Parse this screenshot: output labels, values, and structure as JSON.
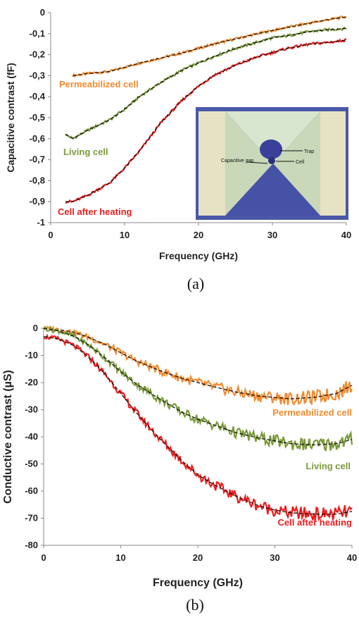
{
  "chart_data": [
    {
      "type": "line",
      "panel": "a",
      "caption": "(a)",
      "xlabel": "Frequency (GHz)",
      "ylabel": "Capacitive contrast (fF)",
      "xlim": [
        0,
        40
      ],
      "ylim": [
        -1,
        0
      ],
      "xticks": [
        "0",
        "10",
        "20",
        "30",
        "40"
      ],
      "yticks": [
        "0",
        "-0,1",
        "-0,2",
        "-0,3",
        "-0,4",
        "-0,5",
        "-0,6",
        "-0,7",
        "-0,8",
        "-0,9",
        "-1"
      ],
      "grid": false,
      "fit_style": "black dashed",
      "series": [
        {
          "name": "Permeabilized cell",
          "color": "#f28a2e",
          "x": [
            3,
            5,
            8,
            10,
            12,
            15,
            18,
            20,
            22,
            25,
            28,
            30,
            32,
            35,
            38,
            40
          ],
          "y": [
            -0.3,
            -0.29,
            -0.28,
            -0.26,
            -0.24,
            -0.215,
            -0.19,
            -0.17,
            -0.15,
            -0.125,
            -0.1,
            -0.085,
            -0.07,
            -0.05,
            -0.03,
            -0.02
          ]
        },
        {
          "name": "Living cell",
          "color": "#7a9a3a",
          "x": [
            2,
            3,
            5,
            8,
            10,
            12,
            15,
            18,
            20,
            22,
            25,
            28,
            30,
            32,
            35,
            38,
            40
          ],
          "y": [
            -0.58,
            -0.6,
            -0.56,
            -0.51,
            -0.46,
            -0.4,
            -0.33,
            -0.27,
            -0.24,
            -0.21,
            -0.17,
            -0.14,
            -0.12,
            -0.11,
            -0.09,
            -0.08,
            -0.075
          ]
        },
        {
          "name": "Cell after heating",
          "color": "#ee1c1c",
          "x": [
            2,
            3,
            5,
            8,
            10,
            12,
            15,
            18,
            20,
            22,
            25,
            28,
            30,
            32,
            35,
            38,
            40
          ],
          "y": [
            -0.9,
            -0.9,
            -0.87,
            -0.81,
            -0.74,
            -0.66,
            -0.52,
            -0.41,
            -0.35,
            -0.3,
            -0.25,
            -0.21,
            -0.19,
            -0.17,
            -0.15,
            -0.14,
            -0.13
          ]
        }
      ],
      "inset_labels": [
        "Trap",
        "Cell",
        "Capacitive gap"
      ]
    },
    {
      "type": "line",
      "panel": "b",
      "caption": "(b)",
      "xlabel": "Frequency (GHz)",
      "ylabel": "Conductive contrast (µS)",
      "xlim": [
        0,
        40
      ],
      "ylim": [
        -80,
        0
      ],
      "xticks": [
        "0",
        "10",
        "20",
        "30",
        "40"
      ],
      "yticks": [
        "0",
        "-10",
        "-20",
        "-30",
        "-40",
        "-50",
        "-60",
        "-70",
        "-80"
      ],
      "grid": false,
      "fit_style": "black dashed",
      "series": [
        {
          "name": "Permeabilized cell",
          "color": "#f28a2e",
          "x": [
            0,
            2,
            4,
            6,
            8,
            10,
            12,
            15,
            18,
            20,
            22,
            25,
            28,
            30,
            32,
            35,
            38,
            40
          ],
          "y": [
            0,
            -0.5,
            -1.5,
            -3.5,
            -6,
            -9,
            -12,
            -15.5,
            -18.5,
            -20,
            -21.5,
            -23.5,
            -25,
            -25.5,
            -26,
            -25.5,
            -24,
            -21
          ]
        },
        {
          "name": "Living cell",
          "color": "#7a9a3a",
          "x": [
            0,
            2,
            4,
            6,
            8,
            10,
            12,
            15,
            18,
            20,
            22,
            25,
            28,
            30,
            32,
            35,
            38,
            40
          ],
          "y": [
            0,
            -1,
            -3,
            -6.5,
            -11,
            -16,
            -20.5,
            -26,
            -31,
            -33.5,
            -35.5,
            -38.5,
            -40.5,
            -41.5,
            -42.5,
            -43,
            -42.5,
            -41
          ]
        },
        {
          "name": "Cell after heating",
          "color": "#ee1c1c",
          "x": [
            0,
            2,
            4,
            6,
            8,
            10,
            12,
            15,
            18,
            20,
            22,
            25,
            28,
            30,
            32,
            35,
            38,
            40
          ],
          "y": [
            -3,
            -4,
            -6.5,
            -11,
            -17,
            -24,
            -31,
            -40.5,
            -49,
            -54,
            -57.5,
            -62,
            -65.5,
            -67,
            -68,
            -68.5,
            -68.5,
            -67.5
          ]
        }
      ]
    }
  ]
}
